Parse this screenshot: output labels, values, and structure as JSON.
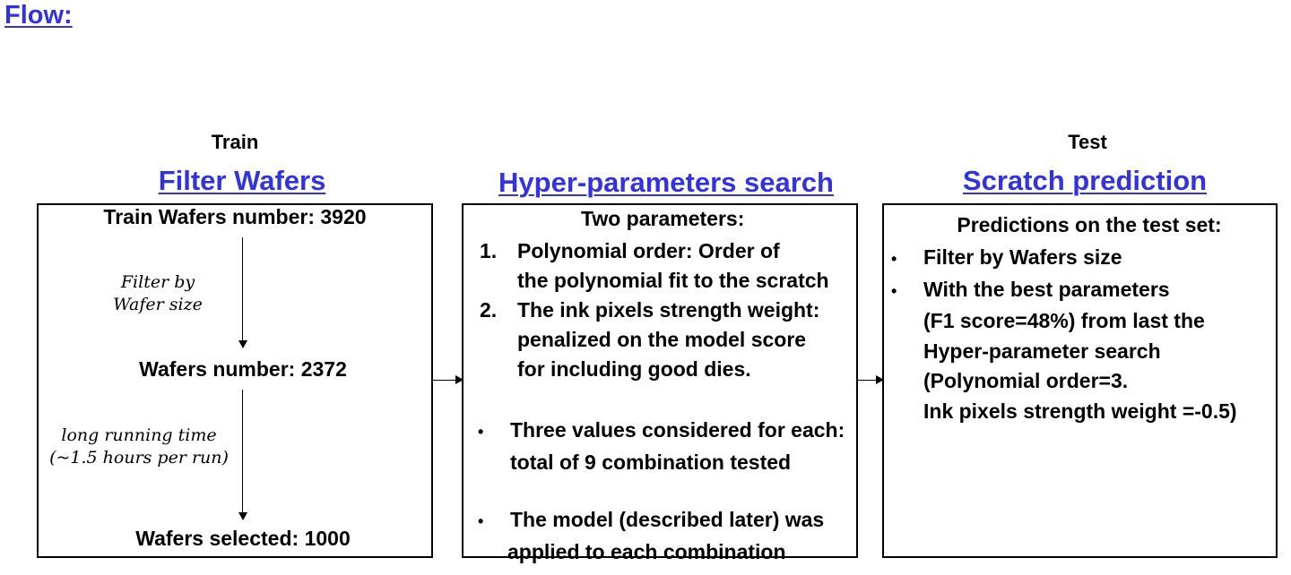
{
  "page": {
    "title": "Flow:"
  },
  "columns": {
    "train": {
      "label": "Train"
    },
    "test": {
      "label": "Test"
    }
  },
  "stages": {
    "filter": {
      "title": "Filter Wafers",
      "start": "Train Wafers number: 3920",
      "step1_line1": "Filter by",
      "step1_line2": "Wafer size",
      "middle": "Wafers number: 2372",
      "step2_line1": "long running time",
      "step2_line2": "(~1.5 hours per run)",
      "end": "Wafers selected: 1000"
    },
    "hyper": {
      "title": "Hyper-parameters search",
      "heading": "Two parameters:",
      "item1_num": "1.",
      "item1_line1": "Polynomial order: Order of",
      "item1_line2": "the polynomial fit to the scratch",
      "item2_num": "2.",
      "item2_line1": "The ink pixels strength weight:",
      "item2_line2": "penalized on the model score",
      "item2_line3": "for including good dies.",
      "bullet1_line1": "Three values considered for each:",
      "bullet1_line2": "total of 9 combination tested",
      "bullet2_line1": "The model (described later) was",
      "bullet2_line2": "applied to each combination"
    },
    "prediction": {
      "title": "Scratch prediction",
      "heading": "Predictions on the test set:",
      "bullet1": "Filter by Wafers size",
      "bullet2_line1": "With the best parameters",
      "bullet2_line2": "(F1 score=48%) from last the",
      "bullet2_line3": "Hyper-parameter search",
      "bullet2_line4": "(Polynomial order=3.",
      "bullet2_line5": "Ink pixels strength weight =-0.5)"
    }
  },
  "bullet_glyph": "•"
}
